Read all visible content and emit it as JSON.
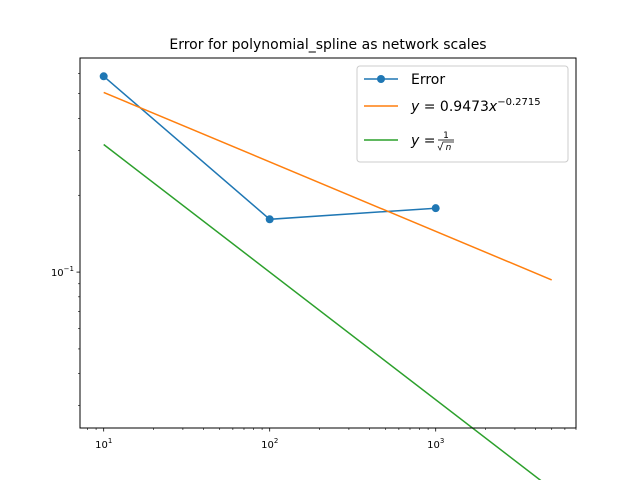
{
  "chart_data": {
    "type": "line",
    "title": "Error for polynomial_spline as network scales",
    "xlabel": "",
    "ylabel": "",
    "xscale": "log",
    "yscale": "log",
    "xlim": [
      7.2,
      7000
    ],
    "ylim": [
      0.0245,
      0.69
    ],
    "grid": false,
    "legend_position": "top-right",
    "x_ticks": [
      {
        "value": 10,
        "base": "10",
        "exp": "1"
      },
      {
        "value": 100,
        "base": "10",
        "exp": "2"
      },
      {
        "value": 1000,
        "base": "10",
        "exp": "3"
      }
    ],
    "y_ticks": [
      {
        "value": 0.1,
        "base": "10",
        "exp": "−1"
      }
    ],
    "series": [
      {
        "name": "Error",
        "color": "#1f77b4",
        "marker": "circle",
        "x": [
          10,
          100,
          1000
        ],
        "y": [
          0.585,
          0.161,
          0.178
        ]
      },
      {
        "name": "y = 0.9473x^{-0.2715}",
        "legend_parts": {
          "lhs": "y",
          "eq": " = 0.9473",
          "var": "x",
          "exp": "−0.2715"
        },
        "color": "#ff7f0e",
        "marker": "none",
        "x": [
          10,
          5000
        ],
        "y": [
          0.506,
          0.0932
        ]
      },
      {
        "name": "y = 1/√n",
        "legend_parts": {
          "lhs": "y",
          "eq": " = ",
          "num": "1",
          "den": "n"
        },
        "color": "#2ca02c",
        "marker": "none",
        "x": [
          10,
          5000
        ],
        "y": [
          0.3162,
          0.01414
        ]
      }
    ]
  }
}
